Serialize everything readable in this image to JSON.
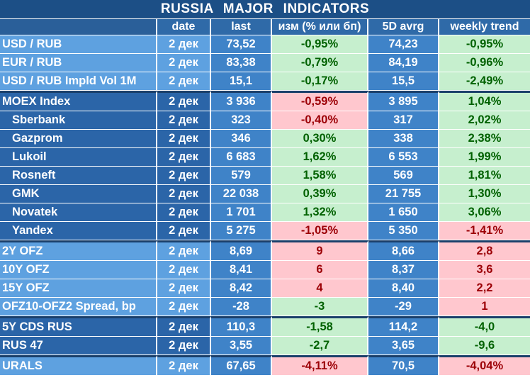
{
  "title": "RUSSIA   MAJOR   INDICATORS",
  "headers": {
    "name": "",
    "date": "date",
    "last": "last",
    "change": "изм (% или бп)",
    "avg5d": "5D avrg",
    "weekly": "weekly trend"
  },
  "colors": {
    "title_bg": "#1c4f86",
    "light_blue": "#5ea1e0",
    "dark_blue": "#2b65a8",
    "positive_bg": "#c6efce",
    "positive_text": "#006100",
    "negative_bg": "#ffc7ce",
    "negative_text": "#9c0006"
  },
  "rows": [
    {
      "name": "USD / RUB",
      "date": "2 дек",
      "last": "73,52",
      "change": "-0,95%",
      "change_tone": "pos",
      "avg5d": "74,23",
      "weekly": "-0,95%",
      "weekly_tone": "pos",
      "group": "fx",
      "sub": false
    },
    {
      "name": "EUR / RUB",
      "date": "2 дек",
      "last": "83,38",
      "change": "-0,79%",
      "change_tone": "pos",
      "avg5d": "84,19",
      "weekly": "-0,96%",
      "weekly_tone": "pos",
      "group": "fx",
      "sub": false
    },
    {
      "name": "USD / RUB Impld Vol 1M",
      "date": "2 дек",
      "last": "15,1",
      "change": "-0,17%",
      "change_tone": "pos",
      "avg5d": "15,5",
      "weekly": "-2,49%",
      "weekly_tone": "pos",
      "group": "fx",
      "sub": false
    },
    {
      "name": "MOEX Index",
      "date": "2 дек",
      "last": "3 936",
      "change": "-0,59%",
      "change_tone": "neg",
      "avg5d": "3 895",
      "weekly": "1,04%",
      "weekly_tone": "pos",
      "group": "eq",
      "sub": false
    },
    {
      "name": "Sberbank",
      "date": "2 дек",
      "last": "323",
      "change": "-0,40%",
      "change_tone": "neg",
      "avg5d": "317",
      "weekly": "2,02%",
      "weekly_tone": "pos",
      "group": "eq",
      "sub": true
    },
    {
      "name": "Gazprom",
      "date": "2 дек",
      "last": "346",
      "change": "0,30%",
      "change_tone": "pos",
      "avg5d": "338",
      "weekly": "2,38%",
      "weekly_tone": "pos",
      "group": "eq",
      "sub": true
    },
    {
      "name": "Lukoil",
      "date": "2 дек",
      "last": "6 683",
      "change": "1,62%",
      "change_tone": "pos",
      "avg5d": "6 553",
      "weekly": "1,99%",
      "weekly_tone": "pos",
      "group": "eq",
      "sub": true
    },
    {
      "name": "Rosneft",
      "date": "2 дек",
      "last": "579",
      "change": "1,58%",
      "change_tone": "pos",
      "avg5d": "569",
      "weekly": "1,81%",
      "weekly_tone": "pos",
      "group": "eq",
      "sub": true
    },
    {
      "name": "GMK",
      "date": "2 дек",
      "last": "22 038",
      "change": "0,39%",
      "change_tone": "pos",
      "avg5d": "21 755",
      "weekly": "1,30%",
      "weekly_tone": "pos",
      "group": "eq",
      "sub": true
    },
    {
      "name": "Novatek",
      "date": "2 дек",
      "last": "1 701",
      "change": "1,32%",
      "change_tone": "pos",
      "avg5d": "1 650",
      "weekly": "3,06%",
      "weekly_tone": "pos",
      "group": "eq",
      "sub": true
    },
    {
      "name": "Yandex",
      "date": "2 дек",
      "last": "5 275",
      "change": "-1,05%",
      "change_tone": "neg",
      "avg5d": "5 350",
      "weekly": "-1,41%",
      "weekly_tone": "neg",
      "group": "eq",
      "sub": true
    },
    {
      "name": "2Y OFZ",
      "date": "2 дек",
      "last": "8,69",
      "change": "9",
      "change_tone": "neg",
      "avg5d": "8,66",
      "weekly": "2,8",
      "weekly_tone": "neg",
      "group": "ofz",
      "sub": false
    },
    {
      "name": "10Y OFZ",
      "date": "2 дек",
      "last": "8,41",
      "change": "6",
      "change_tone": "neg",
      "avg5d": "8,37",
      "weekly": "3,6",
      "weekly_tone": "neg",
      "group": "ofz",
      "sub": false
    },
    {
      "name": "15Y OFZ",
      "date": "2 дек",
      "last": "8,42",
      "change": "4",
      "change_tone": "neg",
      "avg5d": "8,40",
      "weekly": "2,2",
      "weekly_tone": "neg",
      "group": "ofz",
      "sub": false
    },
    {
      "name": "OFZ10-OFZ2 Spread, bp",
      "date": "2 дек",
      "last": "-28",
      "change": "-3",
      "change_tone": "pos",
      "avg5d": "-29",
      "weekly": "1",
      "weekly_tone": "neg",
      "group": "ofz",
      "sub": false
    },
    {
      "name": "5Y CDS RUS",
      "date": "2 дек",
      "last": "110,3",
      "change": "-1,58",
      "change_tone": "pos",
      "avg5d": "114,2",
      "weekly": "-4,0",
      "weekly_tone": "pos",
      "group": "cds",
      "sub": false
    },
    {
      "name": "RUS 47",
      "date": "2 дек",
      "last": "3,55",
      "change": "-2,7",
      "change_tone": "pos",
      "avg5d": "3,65",
      "weekly": "-9,6",
      "weekly_tone": "pos",
      "group": "cds",
      "sub": false
    },
    {
      "name": "URALS",
      "date": "2 дек",
      "last": "67,65",
      "change": "-4,11%",
      "change_tone": "neg",
      "avg5d": "70,5",
      "weekly": "-4,04%",
      "weekly_tone": "neg",
      "group": "urals",
      "sub": false
    }
  ]
}
